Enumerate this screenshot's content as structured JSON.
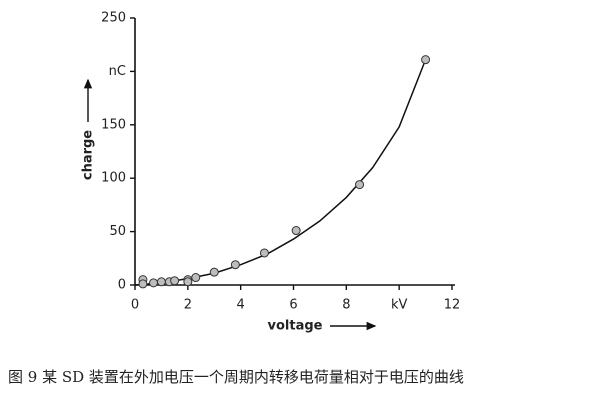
{
  "chart_data": {
    "type": "scatter",
    "x_label": "voltage",
    "y_label": "charge",
    "xlim": [
      0,
      12
    ],
    "ylim": [
      0,
      250
    ],
    "xticks": [
      0,
      2,
      4,
      6,
      8,
      {
        "value": 10,
        "label": "kV"
      },
      12
    ],
    "yticks": [
      0,
      50,
      100,
      150,
      {
        "value": 200,
        "label": "nC"
      },
      250
    ],
    "points": {
      "color": "#bdbdbd",
      "x": [
        0.3,
        0.3,
        0.7,
        1.0,
        1.3,
        1.5,
        2.0,
        2.0,
        2.3,
        3.0,
        3.8,
        4.9,
        6.1,
        8.5,
        11.0
      ],
      "values": [
        5,
        1,
        2,
        3,
        3,
        4,
        5,
        3,
        7,
        12,
        19,
        30,
        51,
        94,
        211
      ]
    },
    "curve": {
      "color": "#111",
      "x": [
        0,
        1,
        2,
        3,
        4,
        5,
        6,
        7,
        8,
        9,
        10,
        11
      ],
      "values": [
        0,
        2,
        6,
        11,
        19,
        29,
        43,
        60,
        82,
        110,
        148,
        211
      ]
    },
    "caption": "图 9  某 SD 装置在外加电压一个周期内转移电荷量相对于电压的曲线"
  }
}
